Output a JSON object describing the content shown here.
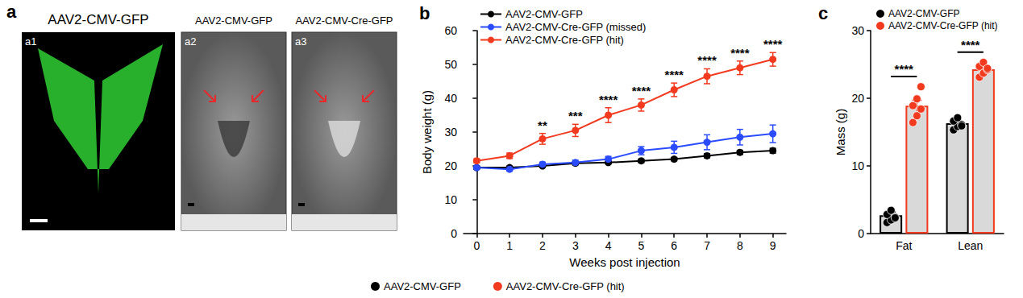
{
  "panel_a": {
    "letter": "a",
    "images": [
      {
        "tag": "a1",
        "title": "AAV2-CMV-GFP"
      },
      {
        "tag": "a2",
        "title": "AAV2-CMV-GFP"
      },
      {
        "tag": "a3",
        "title": "AAV2-CMV-Cre-GFP"
      }
    ]
  },
  "chart_data": [
    {
      "type": "line",
      "title": "b",
      "xlabel": "Weeks post injection",
      "ylabel": "Body weight (g)",
      "x": [
        0,
        1,
        2,
        3,
        4,
        5,
        6,
        7,
        8,
        9
      ],
      "xlim": [
        -0.4,
        9.4
      ],
      "xticks": [
        0,
        1,
        2,
        3,
        4,
        5,
        6,
        7,
        8,
        9
      ],
      "ylim": [
        0,
        60
      ],
      "yticks": [
        0,
        10,
        20,
        30,
        40,
        50,
        60
      ],
      "grid": false,
      "legend": "upper left",
      "marker": "circle",
      "series": [
        {
          "name": "AAV2-CMV-GFP",
          "color": "#000000",
          "values": [
            19.5,
            19.5,
            20,
            20.8,
            21,
            21.5,
            22,
            23,
            24,
            24.5
          ],
          "errors": [
            0.4,
            0.4,
            0.4,
            0.4,
            0.4,
            0.5,
            0.5,
            0.6,
            0.6,
            0.7
          ]
        },
        {
          "name": "AAV2-CMV-Cre-GFP (missed)",
          "color": "#2b4bff",
          "values": [
            19.5,
            19,
            20.5,
            21,
            22,
            24.5,
            25.5,
            27,
            28.5,
            29.5
          ],
          "errors": [
            0.5,
            0.5,
            0.6,
            0.7,
            0.8,
            1.2,
            1.8,
            2.2,
            2.3,
            2.6
          ]
        },
        {
          "name": "AAV2-CMV-Cre-GFP (hit)",
          "color": "#f23a1f",
          "values": [
            21.5,
            23,
            28,
            30.5,
            35,
            38,
            42.5,
            46.5,
            49,
            51.5
          ],
          "errors": [
            0.6,
            0.8,
            1.6,
            1.8,
            2.2,
            1.8,
            2.0,
            2.2,
            2.0,
            2.0
          ],
          "significance": [
            null,
            null,
            "**",
            "***",
            "****",
            "****",
            "****",
            "****",
            "****",
            "****"
          ]
        }
      ]
    },
    {
      "type": "bar",
      "title": "c",
      "ylabel": "Mass (g)",
      "categories": [
        "Fat",
        "Lean"
      ],
      "ylim": [
        0,
        30
      ],
      "yticks": [
        0,
        10,
        20,
        30
      ],
      "grid": false,
      "legend": "upper left",
      "series": [
        {
          "name": "AAV2-CMV-GFP",
          "color": "#000000",
          "values": [
            2.7,
            16.3
          ],
          "errors": [
            0.5,
            0.3
          ],
          "points": [
            [
              1.8,
              2.2,
              2.6,
              3.0,
              3.6,
              2.5
            ],
            [
              15.5,
              16.0,
              16.3,
              16.8,
              17.3,
              16.1
            ]
          ]
        },
        {
          "name": "AAV2-CMV-Cre-GFP (hit)",
          "color": "#f23a1f",
          "values": [
            18.9,
            24.3
          ],
          "errors": [
            0.8,
            0.4
          ],
          "points": [
            [
              16.5,
              17.5,
              18.5,
              19.0,
              20.0,
              21.8
            ],
            [
              23.2,
              23.8,
              24.3,
              24.8,
              25.4,
              24.5
            ]
          ]
        }
      ],
      "significance": [
        "****",
        "****"
      ]
    }
  ]
}
